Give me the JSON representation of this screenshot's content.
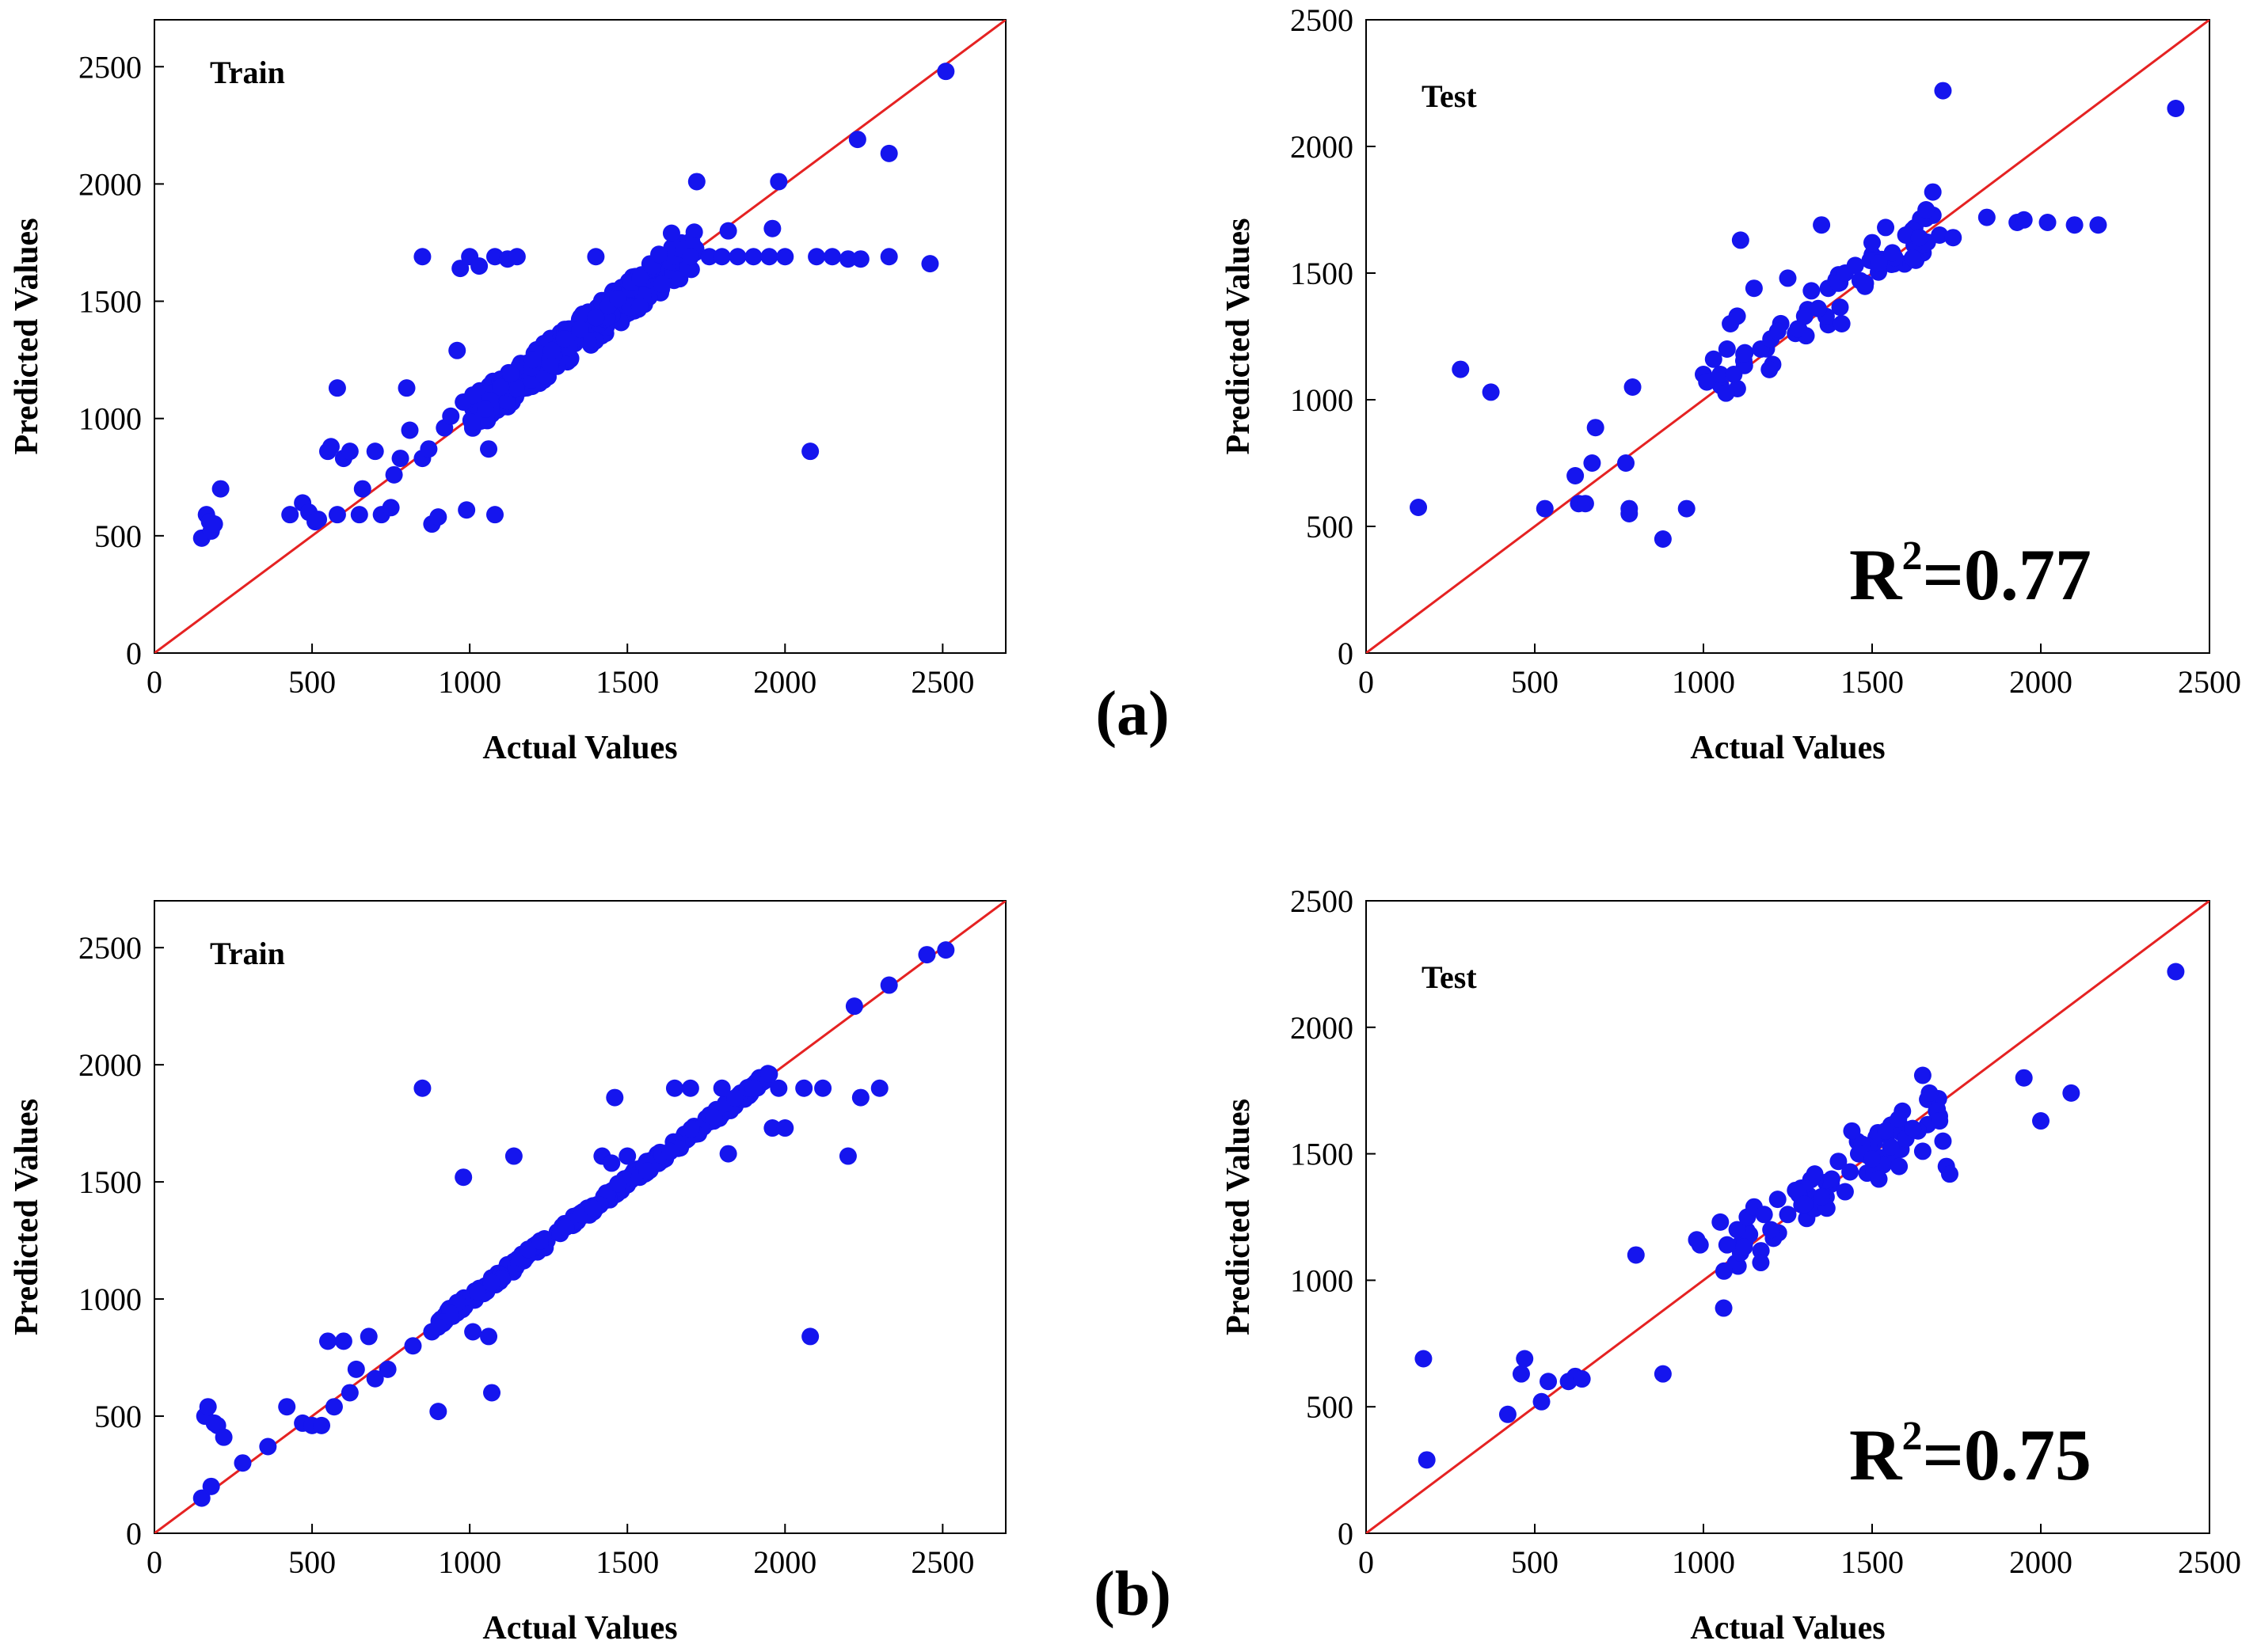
{
  "colors": {
    "points": "#1515ee",
    "diagonal": "#e52222",
    "axes": "#000000"
  },
  "figure_labels": [
    "(a)",
    "(b)"
  ],
  "chart_data": [
    {
      "type": "scatter",
      "panel_label": "Train",
      "xlabel": "Actual Values",
      "ylabel": "Predicted Values",
      "xlim": [
        0,
        2700
      ],
      "ylim": [
        0,
        2700
      ],
      "xticks": [
        "0",
        "500",
        "1000",
        "1500",
        "2000",
        "2500"
      ],
      "yticks": [
        "0",
        "500",
        "1000",
        "1500",
        "2000",
        "2500"
      ],
      "reference_line": "y=x",
      "r_squared": "",
      "points": [
        [
          150,
          490
        ],
        [
          165,
          590
        ],
        [
          175,
          560
        ],
        [
          180,
          520
        ],
        [
          190,
          550
        ],
        [
          210,
          700
        ],
        [
          430,
          590
        ],
        [
          470,
          640
        ],
        [
          490,
          600
        ],
        [
          510,
          560
        ],
        [
          520,
          570
        ],
        [
          550,
          860
        ],
        [
          560,
          880
        ],
        [
          580,
          590
        ],
        [
          580,
          1130
        ],
        [
          600,
          830
        ],
        [
          620,
          860
        ],
        [
          650,
          590
        ],
        [
          660,
          700
        ],
        [
          700,
          860
        ],
        [
          720,
          590
        ],
        [
          750,
          620
        ],
        [
          760,
          760
        ],
        [
          780,
          830
        ],
        [
          800,
          1130
        ],
        [
          810,
          950
        ],
        [
          850,
          830
        ],
        [
          850,
          1690
        ],
        [
          870,
          870
        ],
        [
          880,
          550
        ],
        [
          900,
          580
        ],
        [
          920,
          960
        ],
        [
          940,
          1010
        ],
        [
          960,
          1290
        ],
        [
          970,
          1640
        ],
        [
          980,
          1070
        ],
        [
          990,
          610
        ],
        [
          1000,
          1690
        ],
        [
          1010,
          1100
        ],
        [
          1030,
          1650
        ],
        [
          1050,
          1040
        ],
        [
          1060,
          870
        ],
        [
          1080,
          1690
        ],
        [
          1080,
          590
        ],
        [
          1120,
          1680
        ],
        [
          1130,
          1190
        ],
        [
          1150,
          1690
        ],
        [
          1200,
          1250
        ],
        [
          1260,
          1290
        ],
        [
          1300,
          1340
        ],
        [
          1350,
          1380
        ],
        [
          1400,
          1430
        ],
        [
          1400,
          1690
        ],
        [
          1440,
          1480
        ],
        [
          1470,
          1510
        ],
        [
          1510,
          1580
        ],
        [
          1540,
          1600
        ],
        [
          1580,
          1650
        ],
        [
          1600,
          1700
        ],
        [
          1640,
          1790
        ],
        [
          1680,
          1720
        ],
        [
          1700,
          1690
        ],
        [
          1720,
          2010
        ],
        [
          1760,
          1690
        ],
        [
          1800,
          1690
        ],
        [
          1820,
          1800
        ],
        [
          1850,
          1690
        ],
        [
          1900,
          1690
        ],
        [
          1950,
          1690
        ],
        [
          1960,
          1810
        ],
        [
          1980,
          2010
        ],
        [
          2000,
          1690
        ],
        [
          2080,
          860
        ],
        [
          2100,
          1690
        ],
        [
          2150,
          1690
        ],
        [
          2200,
          1680
        ],
        [
          2230,
          2190
        ],
        [
          2240,
          1680
        ],
        [
          2330,
          2130
        ],
        [
          2330,
          1690
        ],
        [
          2460,
          1660
        ],
        [
          2510,
          2480
        ]
      ],
      "cloud": {
        "x_range": [
          1000,
          1720
        ],
        "spread": 80,
        "count": 320
      }
    },
    {
      "type": "scatter",
      "panel_label": "Test",
      "xlabel": "Actual Values",
      "ylabel": "Predicted Values",
      "xlim": [
        0,
        2500
      ],
      "ylim": [
        0,
        2500
      ],
      "xticks": [
        "0",
        "500",
        "1000",
        "1500",
        "2000",
        "2500"
      ],
      "yticks": [
        "0",
        "500",
        "1000",
        "1500",
        "2000",
        "2500"
      ],
      "reference_line": "y=x",
      "r_squared": "0.77",
      "points": [
        [
          155,
          575
        ],
        [
          280,
          1120
        ],
        [
          370,
          1030
        ],
        [
          530,
          570
        ],
        [
          620,
          700
        ],
        [
          630,
          590
        ],
        [
          650,
          590
        ],
        [
          670,
          750
        ],
        [
          680,
          890
        ],
        [
          770,
          750
        ],
        [
          780,
          570
        ],
        [
          780,
          550
        ],
        [
          790,
          1050
        ],
        [
          880,
          450
        ],
        [
          950,
          570
        ],
        [
          1000,
          1100
        ],
        [
          1010,
          1070
        ],
        [
          1030,
          1160
        ],
        [
          1050,
          1100
        ],
        [
          1070,
          1200
        ],
        [
          1080,
          1300
        ],
        [
          1090,
          1100
        ],
        [
          1100,
          1330
        ],
        [
          1110,
          1630
        ],
        [
          1120,
          1180
        ],
        [
          1150,
          1440
        ],
        [
          1170,
          1200
        ],
        [
          1200,
          1240
        ],
        [
          1220,
          1270
        ],
        [
          1250,
          1480
        ],
        [
          1280,
          1280
        ],
        [
          1300,
          1330
        ],
        [
          1320,
          1430
        ],
        [
          1340,
          1360
        ],
        [
          1350,
          1690
        ],
        [
          1370,
          1440
        ],
        [
          1400,
          1460
        ],
        [
          1410,
          1300
        ],
        [
          1420,
          1500
        ],
        [
          1450,
          1530
        ],
        [
          1480,
          1460
        ],
        [
          1500,
          1620
        ],
        [
          1520,
          1540
        ],
        [
          1540,
          1680
        ],
        [
          1560,
          1580
        ],
        [
          1600,
          1650
        ],
        [
          1620,
          1560
        ],
        [
          1640,
          1640
        ],
        [
          1660,
          1750
        ],
        [
          1680,
          1820
        ],
        [
          1700,
          1650
        ],
        [
          1710,
          2220
        ],
        [
          1740,
          1640
        ],
        [
          1840,
          1720
        ],
        [
          1930,
          1700
        ],
        [
          1950,
          1710
        ],
        [
          2020,
          1700
        ],
        [
          2100,
          1690
        ],
        [
          2170,
          1690
        ],
        [
          2400,
          2150
        ]
      ],
      "cloud": {
        "x_range": [
          1050,
          1700
        ],
        "spread": 90,
        "count": 40
      }
    },
    {
      "type": "scatter",
      "panel_label": "Train",
      "xlabel": "Actual Values",
      "ylabel": "Predicted Values",
      "xlim": [
        0,
        2700
      ],
      "ylim": [
        0,
        2700
      ],
      "xticks": [
        "0",
        "500",
        "1000",
        "1500",
        "2000",
        "2500"
      ],
      "yticks": [
        "0",
        "500",
        "1000",
        "1500",
        "2000",
        "2500"
      ],
      "reference_line": "y=x",
      "r_squared": "",
      "points": [
        [
          150,
          150
        ],
        [
          160,
          500
        ],
        [
          170,
          540
        ],
        [
          180,
          200
        ],
        [
          190,
          470
        ],
        [
          200,
          460
        ],
        [
          220,
          410
        ],
        [
          280,
          300
        ],
        [
          360,
          370
        ],
        [
          420,
          540
        ],
        [
          470,
          470
        ],
        [
          500,
          460
        ],
        [
          530,
          460
        ],
        [
          550,
          820
        ],
        [
          570,
          540
        ],
        [
          600,
          820
        ],
        [
          620,
          600
        ],
        [
          640,
          700
        ],
        [
          680,
          840
        ],
        [
          700,
          660
        ],
        [
          740,
          700
        ],
        [
          820,
          800
        ],
        [
          850,
          1900
        ],
        [
          880,
          860
        ],
        [
          900,
          880
        ],
        [
          900,
          520
        ],
        [
          980,
          1520
        ],
        [
          1010,
          860
        ],
        [
          1060,
          840
        ],
        [
          1070,
          600
        ],
        [
          1140,
          1610
        ],
        [
          1420,
          1610
        ],
        [
          1450,
          1580
        ],
        [
          1460,
          1860
        ],
        [
          1500,
          1610
        ],
        [
          1650,
          1900
        ],
        [
          1700,
          1900
        ],
        [
          1800,
          1900
        ],
        [
          1820,
          1620
        ],
        [
          1900,
          1900
        ],
        [
          1950,
          1960
        ],
        [
          1960,
          1730
        ],
        [
          1980,
          1900
        ],
        [
          2000,
          1730
        ],
        [
          2060,
          1900
        ],
        [
          2080,
          840
        ],
        [
          2120,
          1900
        ],
        [
          2200,
          1610
        ],
        [
          2220,
          2250
        ],
        [
          2240,
          1860
        ],
        [
          2300,
          1900
        ],
        [
          2330,
          2340
        ],
        [
          2450,
          2470
        ],
        [
          2510,
          2490
        ]
      ],
      "cloud": {
        "x_range": [
          900,
          1950
        ],
        "spread": 25,
        "count": 300
      }
    },
    {
      "type": "scatter",
      "panel_label": "Test",
      "xlabel": "Actual Values",
      "ylabel": "Predicted Values",
      "xlim": [
        0,
        2500
      ],
      "ylim": [
        0,
        2500
      ],
      "xticks": [
        "0",
        "500",
        "1000",
        "1500",
        "2000",
        "2500"
      ],
      "yticks": [
        "0",
        "500",
        "1000",
        "1500",
        "2000",
        "2500"
      ],
      "reference_line": "y=x",
      "r_squared": "0.75",
      "points": [
        [
          170,
          690
        ],
        [
          180,
          290
        ],
        [
          420,
          470
        ],
        [
          460,
          630
        ],
        [
          470,
          690
        ],
        [
          520,
          520
        ],
        [
          540,
          600
        ],
        [
          600,
          600
        ],
        [
          620,
          620
        ],
        [
          640,
          610
        ],
        [
          800,
          1100
        ],
        [
          880,
          630
        ],
        [
          980,
          1160
        ],
        [
          990,
          1140
        ],
        [
          1050,
          1230
        ],
        [
          1060,
          890
        ],
        [
          1070,
          1140
        ],
        [
          1100,
          1200
        ],
        [
          1130,
          1250
        ],
        [
          1150,
          1290
        ],
        [
          1170,
          1070
        ],
        [
          1180,
          1260
        ],
        [
          1200,
          1200
        ],
        [
          1220,
          1320
        ],
        [
          1250,
          1260
        ],
        [
          1280,
          1350
        ],
        [
          1300,
          1300
        ],
        [
          1330,
          1420
        ],
        [
          1350,
          1330
        ],
        [
          1380,
          1400
        ],
        [
          1400,
          1470
        ],
        [
          1420,
          1350
        ],
        [
          1440,
          1590
        ],
        [
          1460,
          1500
        ],
        [
          1500,
          1480
        ],
        [
          1520,
          1400
        ],
        [
          1540,
          1590
        ],
        [
          1580,
          1450
        ],
        [
          1600,
          1560
        ],
        [
          1620,
          1600
        ],
        [
          1650,
          1510
        ],
        [
          1650,
          1810
        ],
        [
          1670,
          1740
        ],
        [
          1700,
          1630
        ],
        [
          1710,
          1550
        ],
        [
          1720,
          1450
        ],
        [
          1730,
          1420
        ],
        [
          1950,
          1800
        ],
        [
          2000,
          1630
        ],
        [
          2090,
          1740
        ],
        [
          2400,
          2220
        ]
      ],
      "cloud": {
        "x_range": [
          1050,
          1700
        ],
        "spread": 90,
        "count": 60
      }
    }
  ]
}
